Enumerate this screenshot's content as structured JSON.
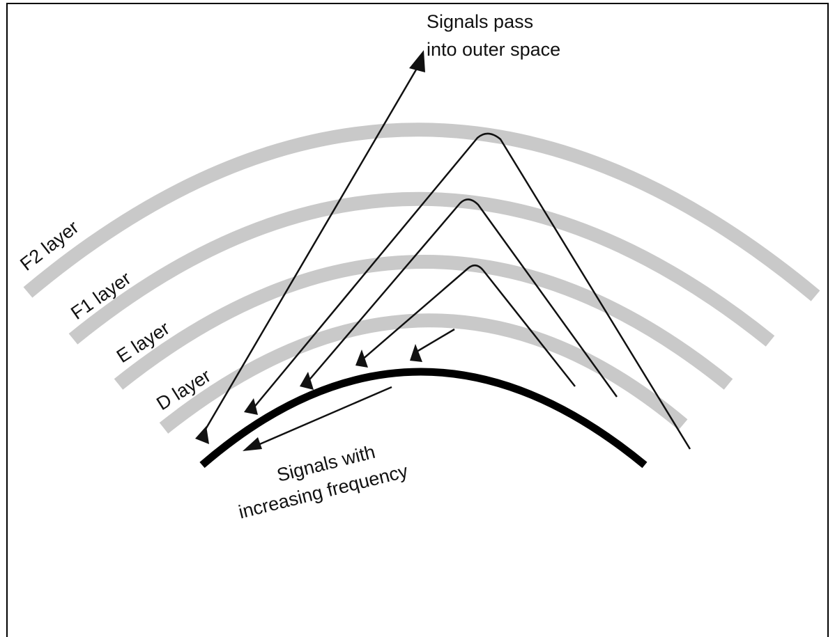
{
  "annotations": {
    "outer_space": [
      "Signals pass",
      "into outer space"
    ],
    "frequency": [
      "Signals with",
      "increasing frequency"
    ]
  },
  "layers": [
    {
      "label": "F2 layer"
    },
    {
      "label": "F1 layer"
    },
    {
      "label": "E layer"
    },
    {
      "label": "D layer"
    }
  ]
}
